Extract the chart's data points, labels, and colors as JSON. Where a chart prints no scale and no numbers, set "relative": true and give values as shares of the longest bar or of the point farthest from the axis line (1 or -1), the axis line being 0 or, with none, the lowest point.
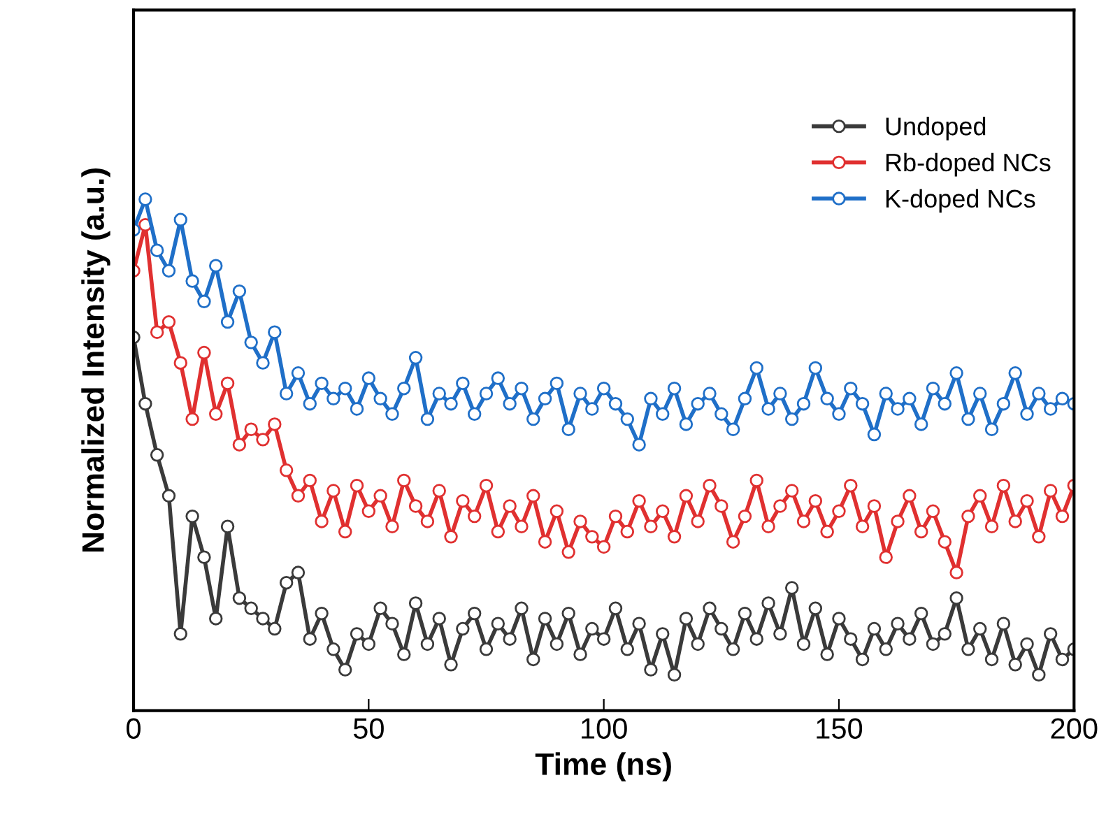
{
  "chart_data": {
    "type": "line",
    "xlabel": "Time (ns)",
    "ylabel": "Normalized Intensity (a.u.)",
    "relative": true,
    "x": [
      0,
      2.5,
      5,
      7.5,
      10,
      12.5,
      15,
      17.5,
      20,
      22.5,
      25,
      27.5,
      30,
      32.5,
      35,
      37.5,
      40,
      42.5,
      45,
      47.5,
      50,
      52.5,
      55,
      57.5,
      60,
      62.5,
      65,
      67.5,
      70,
      72.5,
      75,
      77.5,
      80,
      82.5,
      85,
      87.5,
      90,
      92.5,
      95,
      97.5,
      100,
      102.5,
      105,
      107.5,
      110,
      112.5,
      115,
      117.5,
      120,
      122.5,
      125,
      127.5,
      130,
      132.5,
      135,
      137.5,
      140,
      142.5,
      145,
      147.5,
      150,
      152.5,
      155,
      157.5,
      160,
      162.5,
      165,
      167.5,
      170,
      172.5,
      175,
      177.5,
      180,
      182.5,
      185,
      187.5,
      190,
      192.5,
      195,
      197.5,
      200
    ],
    "xlim": [
      0,
      200
    ],
    "xticks": [
      0,
      50,
      100,
      150,
      200
    ],
    "grid": false,
    "legend": "top right",
    "marker": "circle",
    "line_style": "solid",
    "series": [
      {
        "name": "Undoped",
        "color": "#3a3a3a",
        "values": [
          0.73,
          0.6,
          0.5,
          0.42,
          0.15,
          0.38,
          0.3,
          0.18,
          0.36,
          0.22,
          0.2,
          0.18,
          0.16,
          0.25,
          0.27,
          0.14,
          0.19,
          0.12,
          0.08,
          0.15,
          0.13,
          0.2,
          0.17,
          0.11,
          0.21,
          0.13,
          0.18,
          0.09,
          0.16,
          0.19,
          0.12,
          0.17,
          0.14,
          0.2,
          0.1,
          0.18,
          0.13,
          0.19,
          0.11,
          0.16,
          0.14,
          0.2,
          0.12,
          0.17,
          0.08,
          0.15,
          0.07,
          0.18,
          0.13,
          0.2,
          0.16,
          0.12,
          0.19,
          0.14,
          0.21,
          0.15,
          0.24,
          0.13,
          0.2,
          0.11,
          0.18,
          0.14,
          0.1,
          0.16,
          0.12,
          0.17,
          0.14,
          0.19,
          0.13,
          0.15,
          0.22,
          0.12,
          0.16,
          0.1,
          0.17,
          0.09,
          0.13,
          0.07,
          0.15,
          0.1,
          0.12
        ]
      },
      {
        "name": "Rb-doped NCs",
        "color": "#e03030",
        "values": [
          0.86,
          0.95,
          0.74,
          0.76,
          0.68,
          0.57,
          0.7,
          0.58,
          0.64,
          0.52,
          0.55,
          0.53,
          0.56,
          0.47,
          0.42,
          0.45,
          0.37,
          0.43,
          0.35,
          0.44,
          0.39,
          0.42,
          0.36,
          0.45,
          0.4,
          0.37,
          0.43,
          0.34,
          0.41,
          0.38,
          0.44,
          0.35,
          0.4,
          0.36,
          0.42,
          0.33,
          0.39,
          0.31,
          0.37,
          0.34,
          0.32,
          0.38,
          0.35,
          0.41,
          0.36,
          0.39,
          0.34,
          0.42,
          0.37,
          0.44,
          0.4,
          0.33,
          0.38,
          0.45,
          0.36,
          0.4,
          0.43,
          0.37,
          0.41,
          0.35,
          0.39,
          0.44,
          0.36,
          0.4,
          0.3,
          0.37,
          0.42,
          0.35,
          0.39,
          0.33,
          0.27,
          0.38,
          0.42,
          0.36,
          0.44,
          0.37,
          0.41,
          0.34,
          0.43,
          0.38,
          0.44
        ]
      },
      {
        "name": "K-doped NCs",
        "color": "#1f6fc8",
        "values": [
          0.94,
          1.0,
          0.9,
          0.86,
          0.96,
          0.84,
          0.8,
          0.87,
          0.76,
          0.82,
          0.72,
          0.68,
          0.74,
          0.62,
          0.66,
          0.6,
          0.64,
          0.61,
          0.63,
          0.59,
          0.65,
          0.61,
          0.58,
          0.63,
          0.69,
          0.57,
          0.62,
          0.6,
          0.64,
          0.58,
          0.62,
          0.65,
          0.6,
          0.63,
          0.57,
          0.61,
          0.64,
          0.55,
          0.62,
          0.59,
          0.63,
          0.6,
          0.57,
          0.52,
          0.61,
          0.58,
          0.63,
          0.56,
          0.6,
          0.62,
          0.58,
          0.55,
          0.61,
          0.67,
          0.59,
          0.62,
          0.57,
          0.6,
          0.67,
          0.61,
          0.58,
          0.63,
          0.6,
          0.54,
          0.62,
          0.59,
          0.61,
          0.56,
          0.63,
          0.6,
          0.66,
          0.57,
          0.62,
          0.55,
          0.6,
          0.66,
          0.58,
          0.62,
          0.59,
          0.61,
          0.6
        ]
      }
    ]
  }
}
